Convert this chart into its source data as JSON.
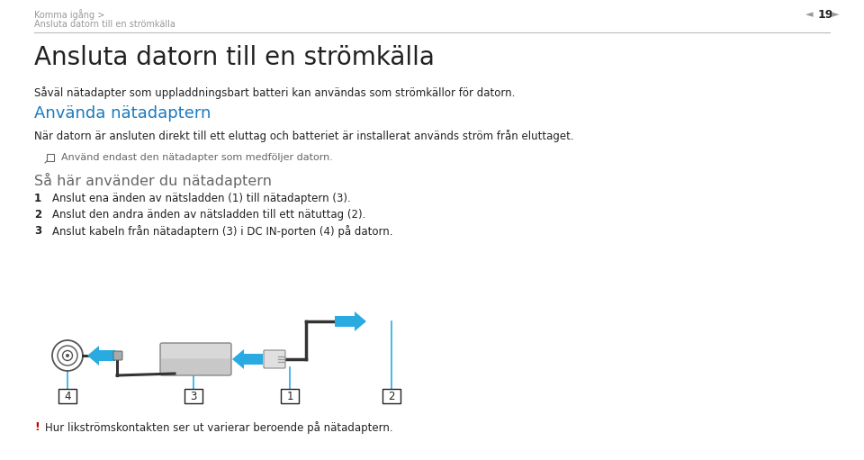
{
  "page_bg": "#ffffff",
  "header_breadcrumb1": "Komma igång >",
  "header_breadcrumb2": "Ansluta datorn till en strömkälla",
  "page_number": "19",
  "title": "Ansluta datorn till en strömkälla",
  "subtitle": "Såväl nätadapter som uppladdningsbart batteri kan användas som strömkällor för datorn.",
  "section_heading": "Använda nätadaptern",
  "section_heading_color": "#1a7abf",
  "section_body": "När datorn är ansluten direkt till ett eluttag och batteriet är installerat används ström från eluttaget.",
  "note_text": "Använd endast den nätadapter som medföljer datorn.",
  "steps_heading": "Så här använder du nätadaptern",
  "steps": [
    "Anslut ena änden av nätsladden (1) till nätadaptern (3).",
    "Anslut den andra änden av nätsladden till ett nätuttag (2).",
    "Anslut kabeln från nätadaptern (3) i DC IN-porten (4) på datorn."
  ],
  "warning_text": "Hur likströmskontakten ser ut varierar beroende på nätadaptern.",
  "warning_color": "#cc0000",
  "header_line_color": "#bbbbbb",
  "header_text_color": "#999999",
  "body_text_color": "#222222",
  "gray_text_color": "#666666",
  "arrow_color": "#29abe2",
  "label_nums": [
    "4",
    "3",
    "1",
    "2"
  ]
}
